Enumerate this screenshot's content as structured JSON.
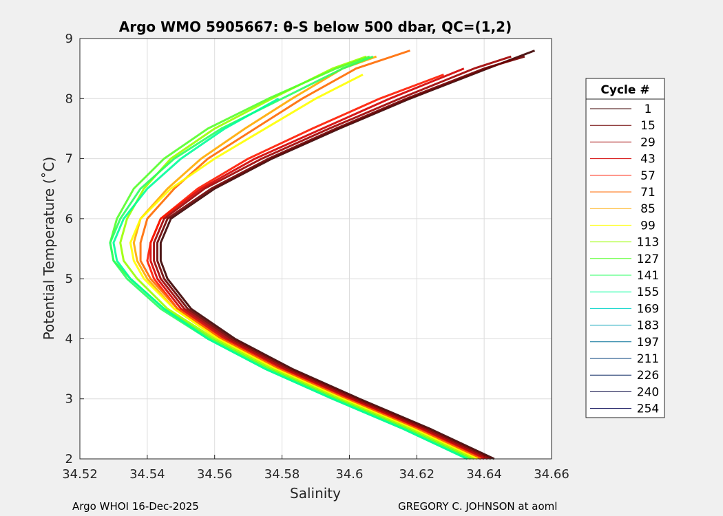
{
  "chart_data": {
    "type": "line",
    "title": "Argo WMO 5905667: θ-S below 500 dbar,  QC=(1,2)",
    "xlabel": "Salinity",
    "ylabel": "Potential Temperature (˚C)",
    "xlim": [
      34.52,
      34.66
    ],
    "ylim": [
      2,
      9
    ],
    "xticks": [
      "34.52",
      "34.54",
      "34.56",
      "34.58",
      "34.6",
      "34.62",
      "34.64",
      "34.66"
    ],
    "yticks": [
      "2",
      "3",
      "4",
      "5",
      "6",
      "7",
      "8",
      "9"
    ],
    "grid": true,
    "legend_placement": "right, outside plot",
    "legend_title": "Cycle #",
    "series": [
      {
        "name": "1",
        "color": "#3c0000",
        "theta": [
          2.0,
          2.5,
          3.0,
          3.5,
          4.0,
          4.5,
          5.0,
          5.3,
          5.6,
          6.0,
          6.5,
          7.0,
          7.5,
          8.0,
          8.5,
          8.8
        ],
        "salinity": [
          34.643,
          34.624,
          34.603,
          34.583,
          34.566,
          34.553,
          34.546,
          34.544,
          34.544,
          34.547,
          34.56,
          34.577,
          34.597,
          34.618,
          34.641,
          34.655
        ]
      },
      {
        "name": "15",
        "color": "#6e0000",
        "theta": [
          2.0,
          2.5,
          3.0,
          3.5,
          4.0,
          4.5,
          5.0,
          5.3,
          5.6,
          6.0,
          6.5,
          7.0,
          7.5,
          8.0,
          8.5,
          8.7
        ],
        "salinity": [
          34.642,
          34.623,
          34.602,
          34.582,
          34.565,
          34.552,
          34.545,
          34.543,
          34.543,
          34.546,
          34.559,
          34.576,
          34.596,
          34.617,
          34.64,
          34.652
        ]
      },
      {
        "name": "29",
        "color": "#a00000",
        "theta": [
          2.0,
          2.5,
          3.0,
          3.5,
          4.0,
          4.5,
          5.0,
          5.3,
          5.6,
          6.0,
          6.5,
          7.0,
          7.5,
          8.0,
          8.5,
          8.7
        ],
        "salinity": [
          34.641,
          34.622,
          34.601,
          34.581,
          34.564,
          34.551,
          34.544,
          34.542,
          34.542,
          34.545,
          34.557,
          34.574,
          34.594,
          34.615,
          34.637,
          34.648
        ]
      },
      {
        "name": "43",
        "color": "#d20000",
        "theta": [
          2.0,
          2.5,
          3.0,
          3.5,
          4.0,
          4.5,
          5.0,
          5.3,
          5.6,
          6.0,
          6.5,
          7.0,
          7.5,
          8.0,
          8.5
        ],
        "salinity": [
          34.64,
          34.621,
          34.6,
          34.58,
          34.563,
          34.55,
          34.543,
          34.541,
          34.541,
          34.544,
          34.556,
          34.572,
          34.592,
          34.612,
          34.634
        ]
      },
      {
        "name": "57",
        "color": "#ff1a00",
        "theta": [
          2.0,
          2.5,
          3.0,
          3.5,
          4.0,
          4.5,
          5.0,
          5.3,
          5.6,
          6.0,
          6.5,
          7.0,
          7.5,
          8.0,
          8.4
        ],
        "salinity": [
          34.639,
          34.62,
          34.599,
          34.579,
          34.562,
          34.549,
          34.542,
          34.54,
          34.541,
          34.544,
          34.555,
          34.57,
          34.589,
          34.609,
          34.628
        ]
      },
      {
        "name": "71",
        "color": "#ff6a00",
        "theta": [
          2.0,
          2.5,
          3.0,
          3.5,
          4.0,
          4.5,
          5.0,
          5.3,
          5.6,
          6.0,
          6.5,
          7.0,
          7.5,
          8.0,
          8.5,
          8.8
        ],
        "salinity": [
          34.639,
          34.62,
          34.599,
          34.579,
          34.562,
          34.549,
          34.541,
          34.538,
          34.538,
          34.54,
          34.548,
          34.558,
          34.572,
          34.586,
          34.602,
          34.618
        ]
      },
      {
        "name": "85",
        "color": "#ffaa00",
        "theta": [
          2.0,
          2.5,
          3.0,
          3.5,
          4.0,
          4.5,
          5.0,
          5.3,
          5.6,
          6.0,
          6.5,
          7.0,
          7.5,
          8.0,
          8.5,
          8.7
        ],
        "salinity": [
          34.638,
          34.619,
          34.598,
          34.578,
          34.561,
          34.548,
          34.54,
          34.537,
          34.536,
          34.538,
          34.546,
          34.556,
          34.569,
          34.583,
          34.598,
          34.608
        ]
      },
      {
        "name": "99",
        "color": "#ffff00",
        "theta": [
          2.0,
          2.5,
          3.0,
          3.5,
          4.0,
          4.5,
          5.0,
          5.3,
          5.6,
          6.0,
          6.5,
          7.0,
          7.5,
          8.0,
          8.4
        ],
        "salinity": [
          34.638,
          34.619,
          34.598,
          34.578,
          34.561,
          34.548,
          34.539,
          34.536,
          34.535,
          34.538,
          34.547,
          34.56,
          34.575,
          34.59,
          34.604
        ]
      },
      {
        "name": "113",
        "color": "#9aff00",
        "theta": [
          2.0,
          2.5,
          3.0,
          3.5,
          4.0,
          4.5,
          5.0,
          5.3,
          5.6,
          6.0,
          6.5,
          7.0,
          7.5,
          8.0,
          8.5,
          8.7
        ],
        "salinity": [
          34.637,
          34.618,
          34.597,
          34.577,
          34.56,
          34.546,
          34.537,
          34.533,
          34.532,
          34.534,
          34.539,
          34.547,
          34.56,
          34.577,
          34.595,
          34.605
        ]
      },
      {
        "name": "127",
        "color": "#55ff2a",
        "theta": [
          2.0,
          2.5,
          3.0,
          3.5,
          4.0,
          4.5,
          5.0,
          5.3,
          5.6,
          6.0,
          6.5,
          7.0,
          7.5,
          8.0,
          8.5,
          8.7
        ],
        "salinity": [
          34.636,
          34.617,
          34.596,
          34.576,
          34.559,
          34.545,
          34.535,
          34.53,
          34.529,
          34.531,
          34.536,
          34.545,
          34.558,
          34.576,
          34.596,
          34.606
        ]
      },
      {
        "name": "141",
        "color": "#2aff60",
        "theta": [
          2.0,
          2.5,
          3.0,
          3.5,
          4.0,
          4.5,
          5.0,
          5.3,
          5.6,
          6.0,
          6.5,
          7.0,
          7.5,
          8.0,
          8.5,
          8.7
        ],
        "salinity": [
          34.635,
          34.616,
          34.595,
          34.575,
          34.558,
          34.544,
          34.534,
          34.53,
          34.529,
          34.532,
          34.538,
          34.548,
          34.562,
          34.58,
          34.598,
          34.607
        ]
      },
      {
        "name": "155",
        "color": "#00ff9a",
        "theta": [
          2.0,
          2.5,
          3.0,
          3.5,
          4.0,
          4.5,
          5.0,
          5.3,
          5.6,
          6.0,
          6.5,
          7.0,
          7.5,
          8.0
        ],
        "salinity": [
          34.635,
          34.616,
          34.595,
          34.575,
          34.558,
          34.545,
          34.535,
          34.531,
          34.53,
          34.533,
          34.54,
          34.55,
          34.563,
          34.579
        ]
      },
      {
        "name": "169",
        "color": "#00d2c8",
        "theta": [],
        "salinity": []
      },
      {
        "name": "183",
        "color": "#00a0b4",
        "theta": [],
        "salinity": []
      },
      {
        "name": "197",
        "color": "#006e96",
        "theta": [],
        "salinity": []
      },
      {
        "name": "211",
        "color": "#003c78",
        "theta": [],
        "salinity": []
      },
      {
        "name": "226",
        "color": "#001e5a",
        "theta": [],
        "salinity": []
      },
      {
        "name": "240",
        "color": "#00003c",
        "theta": [],
        "salinity": []
      },
      {
        "name": "254",
        "color": "#000050",
        "theta": [],
        "salinity": []
      }
    ]
  },
  "footer": {
    "left": "Argo WHOI 16-Dec-2025",
    "right": "GREGORY C. JOHNSON at aoml"
  }
}
